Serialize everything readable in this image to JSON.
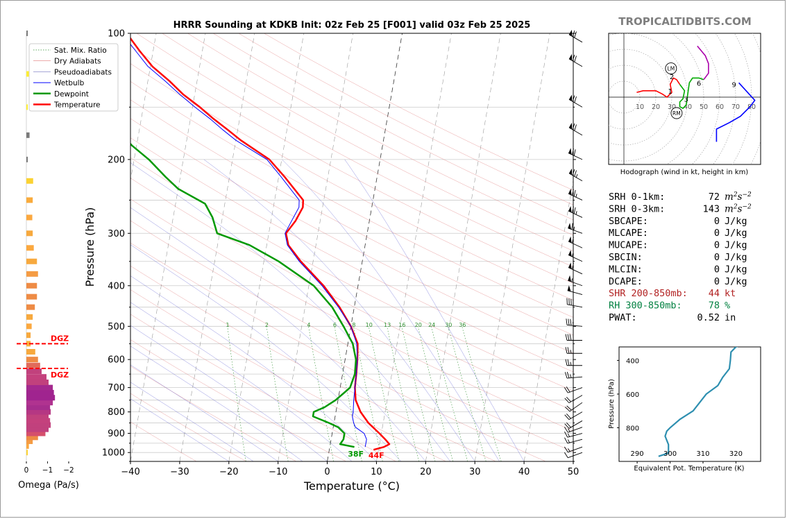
{
  "title": "HRRR Sounding at KDKB Init: 02z Feb 25 [F001] valid 03z Feb 25 2025",
  "brand": "TROPICALTIDBITS.COM",
  "chart_data": [
    {
      "id": "skewt",
      "type": "line",
      "xlabel": "Temperature (°C)",
      "ylabel": "Pressure (hPa)",
      "xlim": [
        -40,
        50
      ],
      "ylim": [
        1050,
        100
      ],
      "y_scale": "log",
      "x_ticks": [
        -40,
        -30,
        -20,
        -10,
        0,
        10,
        20,
        30,
        40,
        50
      ],
      "y_ticks": [
        100,
        200,
        300,
        400,
        500,
        600,
        700,
        800,
        900,
        1000
      ],
      "legend_position": "upper-left",
      "legend": [
        "Sat. Mix. Ratio",
        "Dry Adiabats",
        "Pseudoadiabats",
        "Wetbulb",
        "Dewpoint",
        "Temperature"
      ],
      "mixing_ratio_labels": [
        "1",
        "2",
        "4",
        "6",
        "8",
        "10",
        "13",
        "16",
        "20",
        "24",
        "30",
        "36"
      ],
      "surface_dewpoint_label": "38F",
      "surface_temperature_label": "44F",
      "series": [
        {
          "name": "Temperature",
          "color": "#ff0000",
          "p": [
            985,
            970,
            955,
            930,
            900,
            850,
            800,
            750,
            700,
            650,
            600,
            550,
            500,
            450,
            400,
            350,
            320,
            300,
            280,
            260,
            250,
            220,
            200,
            180,
            170,
            160,
            150,
            140,
            130,
            120,
            110,
            100
          ],
          "t": [
            9.0,
            11.0,
            12.0,
            11.0,
            9.6,
            7.0,
            5.0,
            3.6,
            3.0,
            2.8,
            2.5,
            2.0,
            0.0,
            -3.0,
            -7.0,
            -12.5,
            -15.6,
            -16.5,
            -15.0,
            -14.0,
            -14.2,
            -18.8,
            -22.5,
            -29.0,
            -32.0,
            -35.3,
            -38.5,
            -42.3,
            -45.6,
            -49.6,
            -52.8,
            -56.0
          ]
        },
        {
          "name": "Dewpoint",
          "color": "#009900",
          "p": [
            970,
            955,
            930,
            900,
            870,
            850,
            820,
            800,
            780,
            750,
            720,
            700,
            650,
            600,
            550,
            500,
            450,
            400,
            350,
            320,
            300,
            275,
            255,
            235,
            220,
            200,
            185,
            170,
            160,
            150,
            140,
            130,
            120,
            110,
            100
          ],
          "t": [
            5.0,
            2.0,
            2.5,
            2.5,
            1.0,
            -1.0,
            -4.5,
            -4.5,
            -2.5,
            -0.5,
            1.0,
            2.0,
            2.5,
            2.2,
            1.0,
            -1.5,
            -4.5,
            -9.0,
            -17.0,
            -23.5,
            -30.5,
            -32.0,
            -34.0,
            -40.0,
            -43.0,
            -47.0,
            -51.0,
            -54.4,
            -57.0,
            -61.0,
            -63.5,
            -67.2,
            -71.7,
            -75.6,
            -80.0
          ]
        },
        {
          "name": "Wetbulb",
          "color": "#0000ff",
          "p": [
            970,
            930,
            900,
            870,
            850,
            820,
            800,
            750,
            700,
            650,
            600,
            550,
            500,
            450,
            400,
            350,
            320,
            300,
            280,
            260,
            250,
            220,
            200,
            180,
            170,
            160,
            150,
            140,
            130,
            120,
            110,
            100
          ],
          "t": [
            7.2,
            7.2,
            6.5,
            4.5,
            4.0,
            3.5,
            3.5,
            3.2,
            3.0,
            2.8,
            2.5,
            1.8,
            0.0,
            -3.2,
            -7.3,
            -12.8,
            -15.8,
            -16.7,
            -15.8,
            -14.8,
            -15.0,
            -19.5,
            -23.0,
            -30.0,
            -33.0,
            -36.0,
            -39.5,
            -43.0,
            -46.5,
            -50.5,
            -53.6,
            -57.0
          ]
        }
      ]
    },
    {
      "id": "omega",
      "type": "bar",
      "xlabel": "Omega (Pa/s)",
      "x_ticks": [
        "0",
        "−1",
        "−2"
      ],
      "dgz_label": "DGZ",
      "dgz_p": [
        550,
        630
      ],
      "p": [
        1000,
        965,
        940,
        920,
        900,
        880,
        860,
        840,
        820,
        800,
        780,
        760,
        740,
        720,
        700,
        680,
        660,
        640,
        620,
        600,
        575,
        550,
        525,
        500,
        475,
        450,
        425,
        400,
        375,
        350,
        325,
        300,
        275,
        250,
        225,
        200,
        175,
        150,
        125,
        100
      ],
      "omega": [
        -0.05,
        -0.12,
        -0.3,
        -0.55,
        -0.9,
        -1.05,
        -1.15,
        -1.12,
        -1.05,
        -1.15,
        -1.12,
        -1.25,
        -1.35,
        -1.3,
        -1.25,
        -1.05,
        -0.95,
        -0.72,
        -0.65,
        -0.55,
        -0.42,
        -0.2,
        -0.2,
        -0.25,
        -0.3,
        -0.4,
        -0.5,
        -0.5,
        -0.55,
        -0.5,
        -0.35,
        -0.3,
        -0.28,
        -0.3,
        -0.32,
        -0.05,
        -0.15,
        -0.05,
        -0.12,
        -0.03
      ],
      "colors": [
        "#fbd232",
        "#fba83f",
        "#f59c44",
        "#ee8b45",
        "#d54f6c",
        "#c1417d",
        "#c1417d",
        "#c4417d",
        "#c1417d",
        "#b53783",
        "#a62e8d",
        "#b03390",
        "#a0248f",
        "#a0248f",
        "#a4298e",
        "#c1417d",
        "#c4417d",
        "#c1417d",
        "#e16b5a",
        "#ee8b45",
        "#f7a93e",
        "#fbb23c",
        "#f7a93e",
        "#fba83f",
        "#f7a93e",
        "#ee8b45",
        "#ee8b45",
        "#ee8b45",
        "#f59c44",
        "#f7a93e",
        "#fba83f",
        "#f7a93e",
        "#fba83f",
        "#f9ab3c",
        "#fbd232",
        "#7a7a7a",
        "#7a7a7a",
        "#ffee33",
        "#ffee33",
        "#7a7a7a"
      ]
    },
    {
      "id": "hodograph",
      "type": "line",
      "caption": "Hodograph (wind in kt, height in km)",
      "ring_labels": [
        "10",
        "20",
        "30",
        "40",
        "50",
        "60",
        "70",
        "80"
      ],
      "height_labels": [
        {
          "k": "1",
          "u": 29,
          "v": 4
        },
        {
          "k": "2",
          "u": 30,
          "v": 13
        },
        {
          "k": "3",
          "u": 39,
          "v": -1
        },
        {
          "k": "6",
          "u": 47,
          "v": 9
        },
        {
          "k": "9",
          "u": 69,
          "v": 8
        }
      ],
      "storm_motion": [
        {
          "label": "LM",
          "u": 29.5,
          "v": 18
        },
        {
          "label": "RM",
          "u": 33,
          "v": -10
        }
      ],
      "segments": [
        {
          "color": "#ff0000",
          "u": [
            8,
            12,
            18,
            20,
            24,
            27,
            30,
            29,
            31,
            33,
            35
          ],
          "v": [
            3,
            4,
            4,
            4,
            2,
            0,
            3,
            8,
            12,
            11,
            8
          ]
        },
        {
          "color": "#00aa00",
          "u": [
            35,
            38,
            37,
            35,
            35,
            37,
            39,
            40,
            41,
            43,
            47,
            50
          ],
          "v": [
            8,
            4,
            -1,
            -3,
            -6,
            -7,
            -5,
            2,
            9,
            12,
            12,
            11
          ]
        },
        {
          "color": "#aa00aa",
          "u": [
            50,
            53,
            53,
            51,
            46
          ],
          "v": [
            11,
            15,
            21,
            26,
            32
          ]
        },
        {
          "color": "#0000ff",
          "u": [
            72,
            82,
            79,
            73,
            66,
            58,
            58
          ],
          "v": [
            9,
            -2,
            -6,
            -12,
            -16,
            -20,
            -28
          ]
        }
      ]
    },
    {
      "id": "theta_e",
      "type": "line",
      "xlabel": "Equivalent Pot. Temperature (K)",
      "ylabel": "Pressure (hPa)",
      "x_ticks": [
        290,
        300,
        310,
        320
      ],
      "y_ticks": [
        400,
        600,
        800
      ],
      "color": "#2e8fb0",
      "p": [
        970,
        950,
        900,
        850,
        820,
        800,
        750,
        700,
        650,
        600,
        550,
        500,
        450,
        400,
        350,
        320,
        300
      ],
      "theta_e": [
        296.5,
        299.5,
        299.5,
        298.5,
        299,
        300,
        303,
        307,
        309,
        311,
        314.5,
        316,
        318,
        318.3,
        318.5,
        320,
        323
      ]
    }
  ],
  "wind_barbs": [
    {
      "p": 1000,
      "dir": 250,
      "spd": 10
    },
    {
      "p": 970,
      "dir": 250,
      "spd": 15
    },
    {
      "p": 930,
      "dir": 255,
      "spd": 15
    },
    {
      "p": 900,
      "dir": 255,
      "spd": 15
    },
    {
      "p": 870,
      "dir": 250,
      "spd": 15
    },
    {
      "p": 840,
      "dir": 240,
      "spd": 20
    },
    {
      "p": 800,
      "dir": 240,
      "spd": 20
    },
    {
      "p": 760,
      "dir": 235,
      "spd": 20
    },
    {
      "p": 730,
      "dir": 240,
      "spd": 20
    },
    {
      "p": 700,
      "dir": 250,
      "spd": 20
    },
    {
      "p": 660,
      "dir": 265,
      "spd": 25
    },
    {
      "p": 620,
      "dir": 270,
      "spd": 25
    },
    {
      "p": 580,
      "dir": 270,
      "spd": 25
    },
    {
      "p": 540,
      "dir": 270,
      "spd": 30
    },
    {
      "p": 500,
      "dir": 275,
      "spd": 35
    },
    {
      "p": 450,
      "dir": 280,
      "spd": 40
    },
    {
      "p": 420,
      "dir": 285,
      "spd": 50
    },
    {
      "p": 400,
      "dir": 290,
      "spd": 55
    },
    {
      "p": 375,
      "dir": 295,
      "spd": 60
    },
    {
      "p": 350,
      "dir": 295,
      "spd": 55
    },
    {
      "p": 325,
      "dir": 295,
      "spd": 60
    },
    {
      "p": 300,
      "dir": 290,
      "spd": 65
    },
    {
      "p": 275,
      "dir": 295,
      "spd": 75
    },
    {
      "p": 250,
      "dir": 295,
      "spd": 75
    },
    {
      "p": 225,
      "dir": 300,
      "spd": 75
    },
    {
      "p": 200,
      "dir": 295,
      "spd": 70
    },
    {
      "p": 175,
      "dir": 300,
      "spd": 70
    },
    {
      "p": 150,
      "dir": 300,
      "spd": 70
    },
    {
      "p": 120,
      "dir": 300,
      "spd": 70
    },
    {
      "p": 105,
      "dir": 300,
      "spd": 70
    }
  ],
  "indices": [
    {
      "label": "SRH 0-1km:",
      "value": "72",
      "unit": "m2s-2",
      "color": "#000000"
    },
    {
      "label": "SRH 0-3km:",
      "value": "143",
      "unit": "m2s-2",
      "color": "#000000"
    },
    {
      "label": "SBCAPE:",
      "value": "0",
      "unit": "J/kg",
      "color": "#000000"
    },
    {
      "label": "MLCAPE:",
      "value": "0",
      "unit": "J/kg",
      "color": "#000000"
    },
    {
      "label": "MUCAPE:",
      "value": "0",
      "unit": "J/kg",
      "color": "#000000"
    },
    {
      "label": "SBCIN:",
      "value": "0",
      "unit": "J/kg",
      "color": "#000000"
    },
    {
      "label": "MLCIN:",
      "value": "0",
      "unit": "J/kg",
      "color": "#000000"
    },
    {
      "label": "DCAPE:",
      "value": "0",
      "unit": "J/kg",
      "color": "#000000"
    },
    {
      "label": "SHR 200-850mb:",
      "value": "44",
      "unit": "kt",
      "color": "#b22222"
    },
    {
      "label": "RH 300-850mb:",
      "value": "78",
      "unit": "%",
      "color": "#008040"
    },
    {
      "label": "PWAT:",
      "value": "0.52",
      "unit": "in",
      "color": "#000000"
    }
  ]
}
